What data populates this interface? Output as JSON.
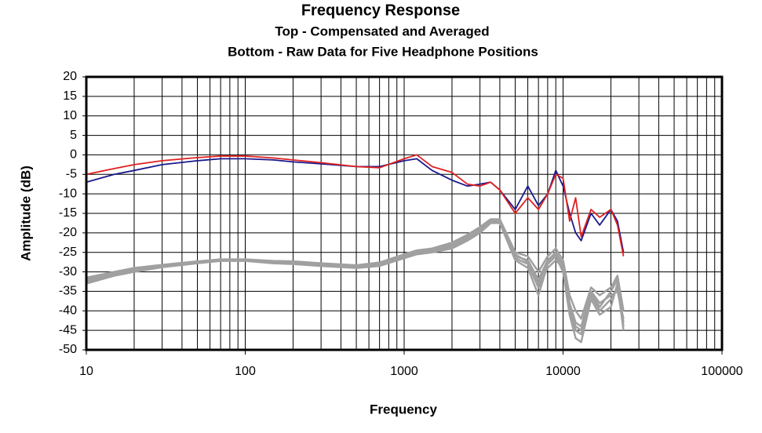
{
  "chart_data": {
    "type": "line",
    "title": "Frequency Response",
    "subtitles": [
      "Top -  Compensated and Averaged",
      "Bottom - Raw Data for Five Headphone Positions"
    ],
    "x_label": "Frequency",
    "y_label": "Amplitude (dB)",
    "log_x": true,
    "grid": true,
    "xlim": [
      10,
      100000
    ],
    "xticks": [
      10,
      100,
      1000,
      10000,
      100000
    ],
    "ylim": [
      -50,
      20
    ],
    "yticks": [
      -50,
      -45,
      -40,
      -35,
      -30,
      -25,
      -20,
      -15,
      -10,
      -5,
      0,
      5,
      10,
      15,
      20
    ],
    "x": [
      10,
      15,
      20,
      30,
      50,
      70,
      100,
      150,
      200,
      300,
      500,
      700,
      1000,
      1200,
      1500,
      2000,
      2500,
      3000,
      3500,
      4000,
      5000,
      6000,
      7000,
      8000,
      9000,
      10000,
      11000,
      12000,
      13000,
      15000,
      17000,
      20000,
      22000,
      24000
    ],
    "series": [
      {
        "color": "#a0a0a0",
        "values": [
          -32,
          -30.5,
          -29.5,
          -28.5,
          -27.5,
          -27,
          -27,
          -27.5,
          -27.5,
          -28,
          -28.5,
          -28,
          -26,
          -25,
          -24.5,
          -23,
          -21,
          -19,
          -17,
          -17,
          -26,
          -27,
          -32,
          -27,
          -25,
          -28,
          -38,
          -43,
          -44,
          -35,
          -38,
          -36,
          -35,
          -42
        ]
      },
      {
        "color": "#a0a0a0",
        "values": [
          -33,
          -31,
          -30,
          -28.8,
          -27.8,
          -27.2,
          -27.2,
          -27.8,
          -28,
          -28.5,
          -29,
          -28.5,
          -26.5,
          -25.5,
          -25,
          -24,
          -22,
          -20,
          -17.5,
          -17.5,
          -27,
          -29,
          -36,
          -28,
          -26,
          -30,
          -41,
          -47,
          -48,
          -37,
          -41,
          -39,
          -33,
          -45
        ]
      },
      {
        "color": "#a0a0a0",
        "values": [
          -31.5,
          -30,
          -29,
          -28.2,
          -27.3,
          -26.8,
          -26.8,
          -27.2,
          -27.3,
          -27.8,
          -28.3,
          -27.6,
          -25.5,
          -24.5,
          -24,
          -22.5,
          -20.5,
          -18.5,
          -16.5,
          -16.5,
          -25,
          -26,
          -30,
          -26,
          -24,
          -27,
          -36,
          -40,
          -42,
          -34,
          -36,
          -34,
          -31,
          -40
        ]
      },
      {
        "color": "#a0a0a0",
        "values": [
          -32.5,
          -30.8,
          -29.7,
          -28.6,
          -27.6,
          -27.1,
          -27.1,
          -27.6,
          -27.7,
          -28.2,
          -28.7,
          -28.2,
          -26.2,
          -25.2,
          -24.8,
          -23.5,
          -21.5,
          -19.5,
          -17.2,
          -17.2,
          -26.5,
          -28,
          -34,
          -29,
          -27,
          -29,
          -40,
          -45,
          -46,
          -36,
          -40,
          -37,
          -34,
          -44
        ]
      },
      {
        "color": "#a0a0a0",
        "values": [
          -31.8,
          -30.2,
          -29.3,
          -28.3,
          -27.4,
          -26.9,
          -26.9,
          -27.3,
          -27.5,
          -27.9,
          -28.4,
          -27.8,
          -25.8,
          -24.8,
          -24.3,
          -22.8,
          -20.8,
          -18.8,
          -16.8,
          -16.8,
          -25.5,
          -27.5,
          -33,
          -27.5,
          -25.5,
          -28.5,
          -39,
          -44,
          -45,
          -35.5,
          -39,
          -35,
          -32,
          -43
        ]
      },
      {
        "color": "#1a1a8c",
        "values": [
          -7,
          -5,
          -4,
          -2.5,
          -1.5,
          -1,
          -1,
          -1.3,
          -1.8,
          -2.3,
          -3,
          -3,
          -1.5,
          -1,
          -4,
          -6.5,
          -8,
          -7.5,
          -7,
          -9,
          -14,
          -8,
          -13,
          -10,
          -4,
          -8,
          -15,
          -20,
          -22,
          -15,
          -18,
          -14,
          -17,
          -25
        ]
      },
      {
        "color": "#e02020",
        "values": [
          -5,
          -3.5,
          -2.5,
          -1.5,
          -0.7,
          -0.3,
          -0.3,
          -0.8,
          -1.3,
          -2,
          -3,
          -3.3,
          -1,
          0,
          -3,
          -4.5,
          -7.5,
          -8,
          -7,
          -9,
          -15,
          -11,
          -14,
          -10,
          -5,
          -6,
          -17,
          -11,
          -21,
          -14,
          -16,
          -14,
          -18,
          -26
        ]
      }
    ]
  }
}
